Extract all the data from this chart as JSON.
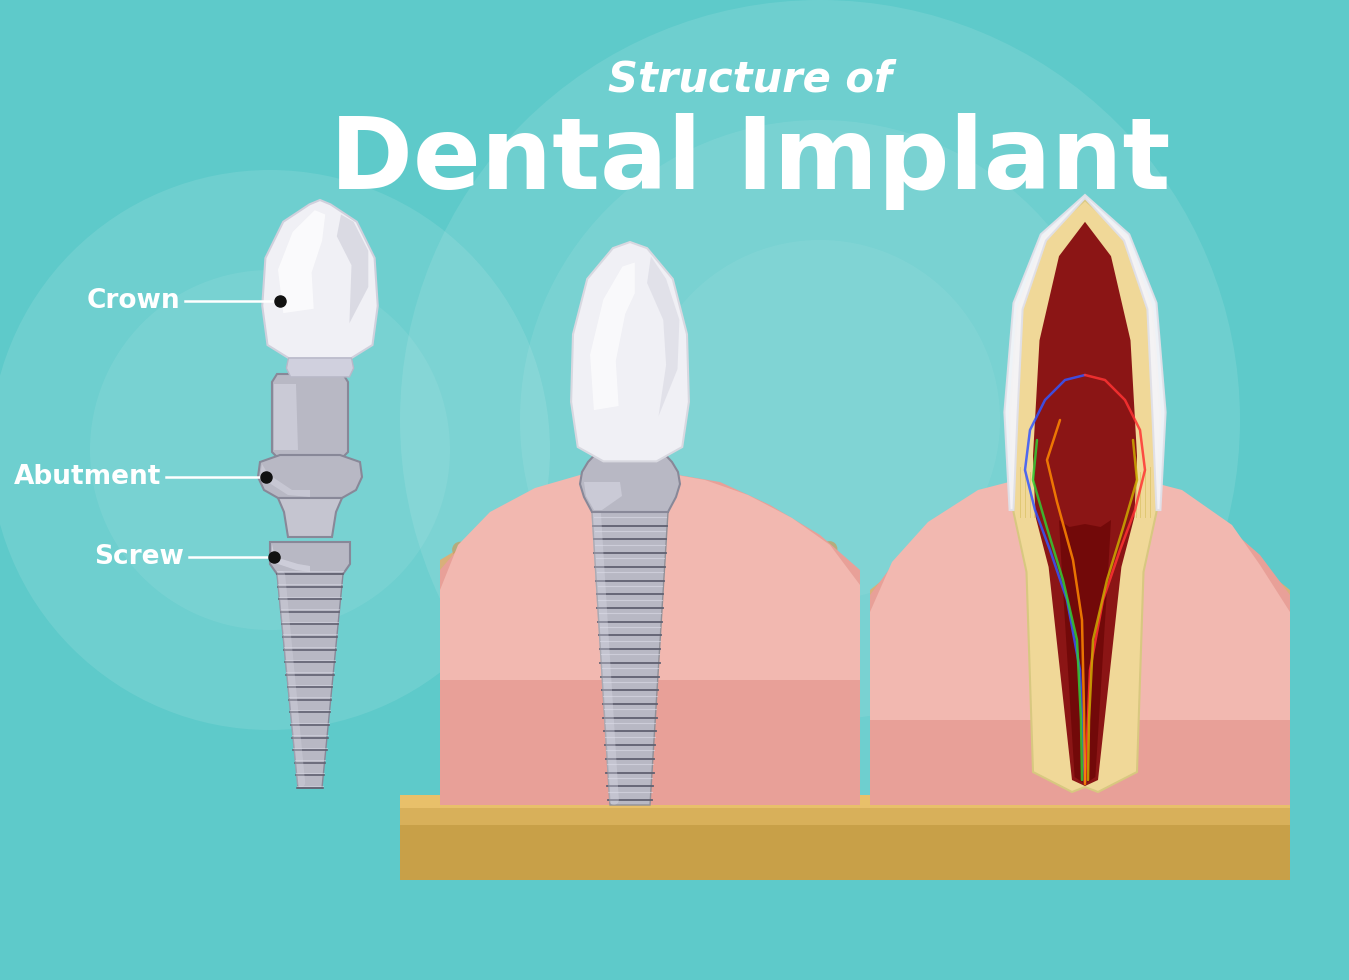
{
  "bg_color": "#5ecaca",
  "title_line1": "Structure of",
  "title_line2": "Dental Implant",
  "title_color": "#ffffff",
  "label_crown": "Crown",
  "label_abutment": "Abutment",
  "label_screw": "Screw",
  "label_color": "#ffffff",
  "label_fontsize": 19,
  "title_fontsize1": 30,
  "title_fontsize2": 72,
  "gum_pink": "#f2b8b0",
  "gum_dark": "#e8a098",
  "bone_tan": "#d8b07a",
  "bone_dot": "#c8a060",
  "metal_base": "#b8b8c4",
  "metal_light": "#dcdce8",
  "metal_dark": "#888898",
  "metal_shadow": "#606070",
  "crown_white": "#f0f0f5",
  "dentin_yellow": "#f0d898",
  "pulp_red": "#8b1515",
  "enamel_white": "#f5f5fa",
  "table_brown": "#c8a048",
  "table_light": "#d8b05a"
}
